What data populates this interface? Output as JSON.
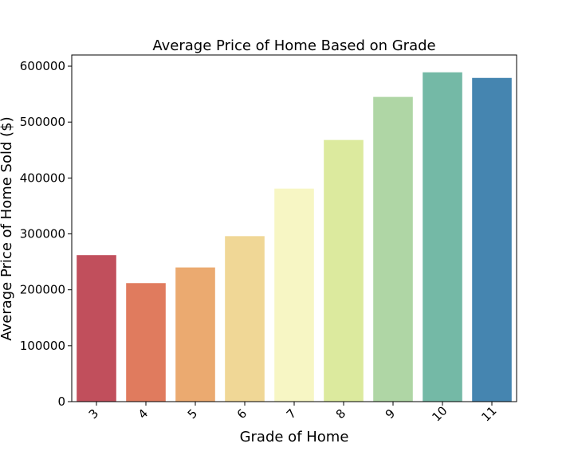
{
  "chart_data": {
    "type": "bar",
    "title": "Average Price of Home Based on Grade",
    "xlabel": "Grade of Home",
    "ylabel": "Average Price of Home Sold ($)",
    "categories": [
      "3",
      "4",
      "5",
      "6",
      "7",
      "8",
      "9",
      "10",
      "11"
    ],
    "values": [
      262000,
      212000,
      240000,
      296000,
      381000,
      468000,
      545000,
      589000,
      579000
    ],
    "colors": [
      "#c14f5c",
      "#e07b5e",
      "#ebaa70",
      "#f0d796",
      "#f7f6c4",
      "#dcea9e",
      "#afd6a5",
      "#74b9a6",
      "#4585b0"
    ],
    "ylim": [
      0,
      620000
    ],
    "yticks": [
      0,
      100000,
      200000,
      300000,
      400000,
      500000,
      600000
    ],
    "ytick_labels": [
      "0",
      "100000",
      "200000",
      "300000",
      "400000",
      "500000",
      "600000"
    ],
    "grid": false,
    "legend": "none"
  }
}
